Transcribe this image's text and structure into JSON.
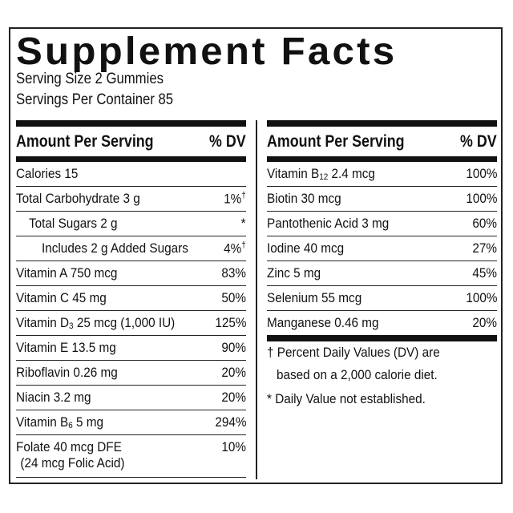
{
  "title": "Supplement Facts",
  "serving_size": "Serving Size 2 Gummies",
  "servings_per_container": "Servings Per Container 85",
  "header": {
    "amount": "Amount Per Serving",
    "dv": "% DV"
  },
  "left_rows": [
    {
      "name": "Calories 15",
      "dv": "",
      "indent": 0
    },
    {
      "name": "Total Carbohydrate 3 g",
      "dv": "1%",
      "mark": "†",
      "indent": 0
    },
    {
      "name": "Total Sugars 2 g",
      "dv": "*",
      "indent": 1
    },
    {
      "name": "Includes 2 g Added Sugars",
      "dv": "4%",
      "mark": "†",
      "indent": 2
    },
    {
      "name": "Vitamin A 750 mcg",
      "dv": "83%",
      "indent": 0
    },
    {
      "name": "Vitamin C 45 mg",
      "dv": "50%",
      "indent": 0
    },
    {
      "name": "Vitamin D",
      "sub": "3",
      "rest": " 25 mcg (1,000 IU)",
      "dv": "125%",
      "indent": 0
    },
    {
      "name": "Vitamin E 13.5 mg",
      "dv": "90%",
      "indent": 0
    },
    {
      "name": "Riboflavin 0.26 mg",
      "dv": "20%",
      "indent": 0
    },
    {
      "name": "Niacin 3.2 mg",
      "dv": "20%",
      "indent": 0
    },
    {
      "name": "Vitamin B",
      "sub": "6",
      "rest": " 5 mg",
      "dv": "294%",
      "indent": 0
    },
    {
      "name": "Folate 40 mcg DFE",
      "line2": "(24 mcg Folic Acid)",
      "dv": "10%",
      "indent": 0
    }
  ],
  "right_rows": [
    {
      "name": "Vitamin B",
      "sub": "12",
      "rest": " 2.4 mcg",
      "dv": "100%",
      "indent": 0
    },
    {
      "name": "Biotin 30 mcg",
      "dv": "100%",
      "indent": 0
    },
    {
      "name": "Pantothenic Acid 3 mg",
      "dv": "60%",
      "indent": 0
    },
    {
      "name": "Iodine 40 mcg",
      "dv": "27%",
      "indent": 0
    },
    {
      "name": "Zinc 5 mg",
      "dv": "45%",
      "indent": 0
    },
    {
      "name": "Selenium 55 mcg",
      "dv": "100%",
      "indent": 0
    },
    {
      "name": "Manganese 0.46 mg",
      "dv": "20%",
      "indent": 0
    }
  ],
  "footnotes": {
    "dagger_line1": "† Percent Daily Values (DV) are",
    "dagger_line2": "based on a 2,000 calorie diet.",
    "asterisk": "* Daily Value not established."
  }
}
